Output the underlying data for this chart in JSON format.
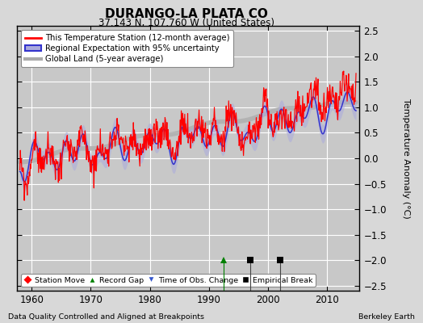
{
  "title": "DURANGO-LA PLATA CO",
  "subtitle": "37.143 N, 107.760 W (United States)",
  "ylabel": "Temperature Anomaly (°C)",
  "footer_left": "Data Quality Controlled and Aligned at Breakpoints",
  "footer_right": "Berkeley Earth",
  "xlim": [
    1957.5,
    2015.5
  ],
  "ylim": [
    -2.6,
    2.6
  ],
  "yticks": [
    -2.5,
    -2,
    -1.5,
    -1,
    -0.5,
    0,
    0.5,
    1,
    1.5,
    2,
    2.5
  ],
  "xticks": [
    1960,
    1970,
    1980,
    1990,
    2000,
    2010
  ],
  "bg_color": "#d8d8d8",
  "plot_bg_color": "#c8c8c8",
  "record_gap_years": [
    1992.5
  ],
  "empirical_break_years": [
    1997.0,
    2002.0
  ],
  "event_y": -2.0,
  "legend_line_color": "#3333cc",
  "legend_band_color": "#aaaadd",
  "legend_gray_color": "#aaaaaa",
  "station_color": "red",
  "global_color": "#b0b0b0"
}
